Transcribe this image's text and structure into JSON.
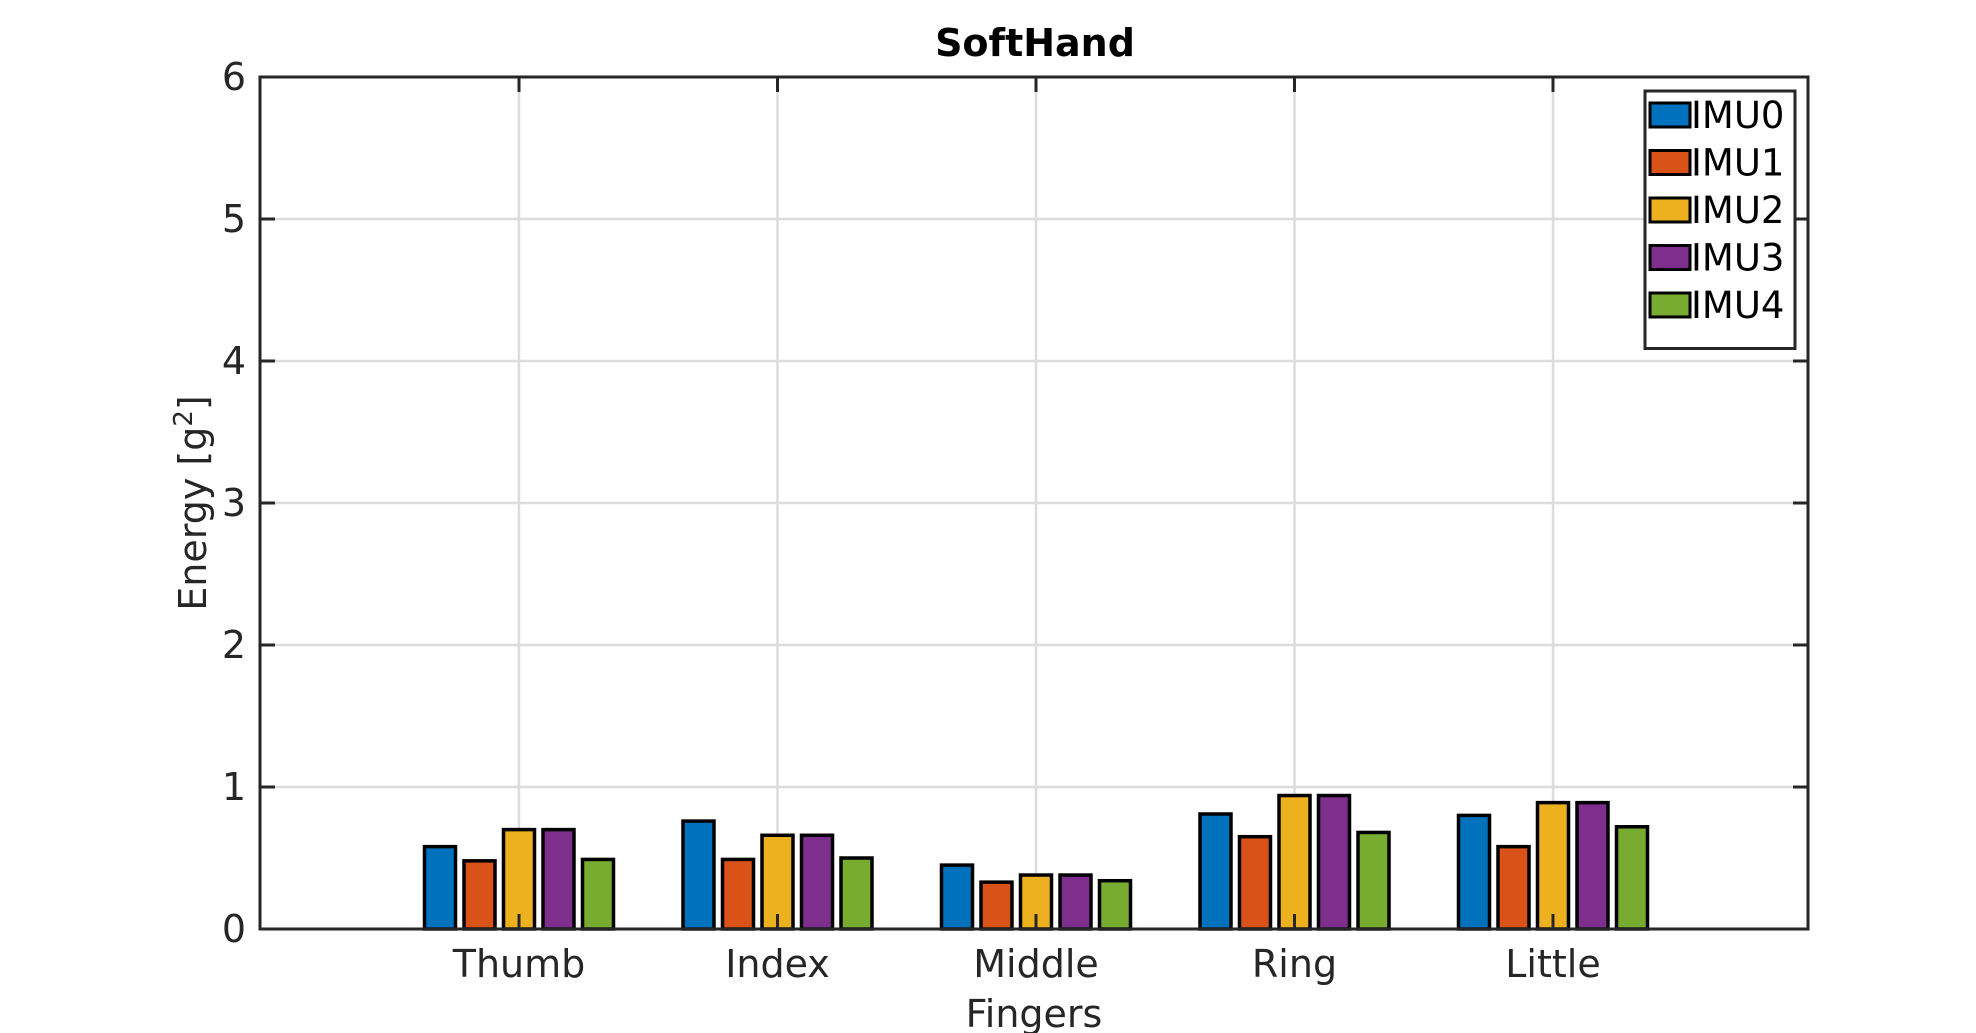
{
  "chart_data": {
    "type": "bar",
    "title": "SoftHand",
    "xlabel": "Fingers",
    "ylabel": "Energy [g",
    "ylabel_sup": "2",
    "ylabel_end": "]",
    "categories": [
      "Thumb",
      "Index",
      "Middle",
      "Ring",
      "Little"
    ],
    "ylim": [
      0,
      6
    ],
    "yticks": [
      0,
      1,
      2,
      3,
      4,
      5,
      6
    ],
    "grid": true,
    "legend_position": "top-right",
    "series": [
      {
        "name": "IMU0",
        "color": "#0072BD",
        "values": [
          0.58,
          0.76,
          0.45,
          0.81,
          0.8
        ]
      },
      {
        "name": "IMU1",
        "color": "#D95319",
        "values": [
          0.48,
          0.49,
          0.33,
          0.65,
          0.58
        ]
      },
      {
        "name": "IMU2",
        "color": "#EDB120",
        "values": [
          0.7,
          0.66,
          0.38,
          0.94,
          0.89
        ]
      },
      {
        "name": "IMU3",
        "color": "#7E2F8E",
        "values": [
          0.7,
          0.66,
          0.38,
          0.94,
          0.89
        ]
      },
      {
        "name": "IMU4",
        "color": "#77AC30",
        "values": [
          0.49,
          0.5,
          0.34,
          0.68,
          0.72
        ]
      }
    ]
  }
}
